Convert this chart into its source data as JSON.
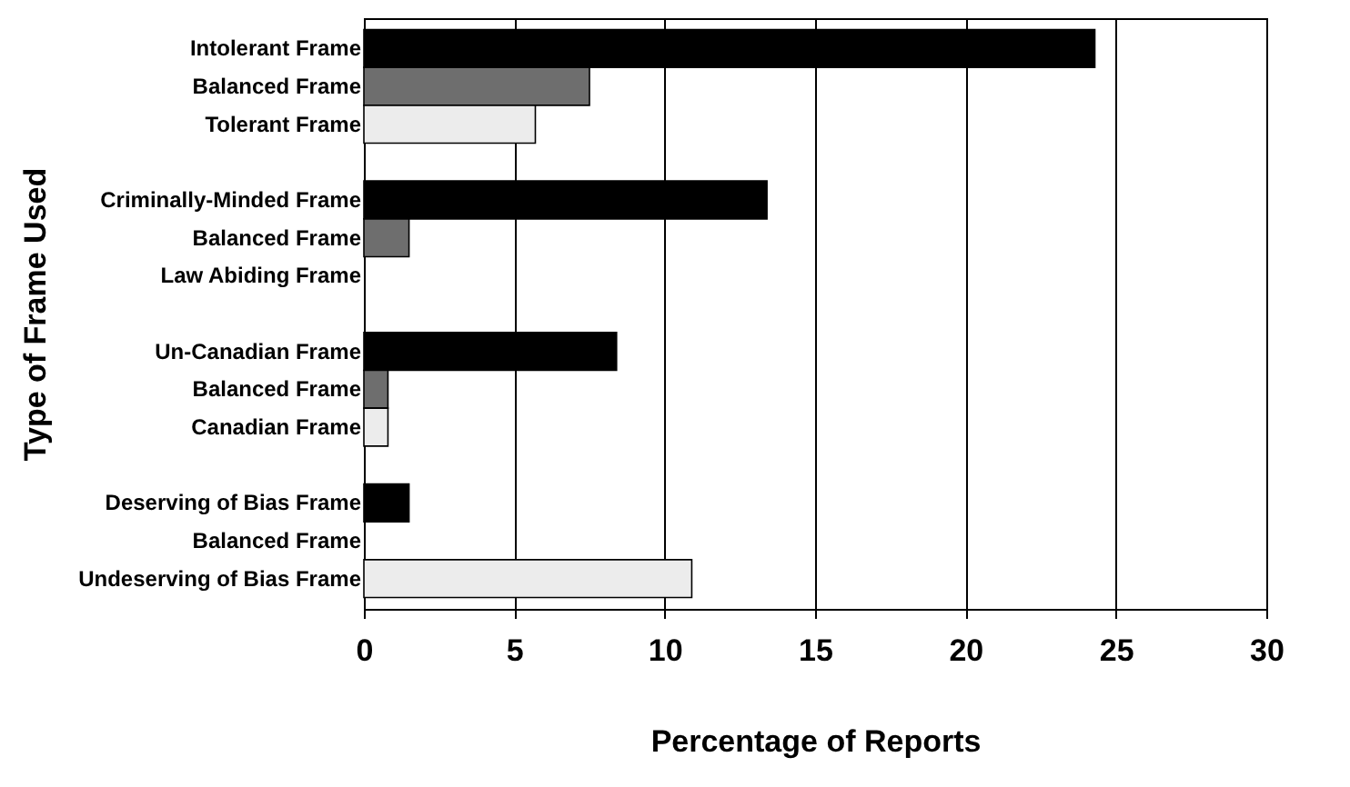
{
  "chart_data": {
    "type": "bar",
    "orientation": "horizontal",
    "xlabel": "Percentage of Reports",
    "ylabel": "Type of Frame Used",
    "categories": [
      "Intolerant Frame",
      "Balanced Frame",
      "Tolerant Frame",
      null,
      "Criminally-Minded Frame",
      "Balanced Frame",
      "Law Abiding Frame",
      null,
      "Un-Canadian Frame",
      "Balanced Frame",
      "Canadian Frame",
      null,
      "Deserving of Bias Frame",
      "Balanced Frame",
      "Undeserving of Bias Frame"
    ],
    "values": [
      24.3,
      7.5,
      5.7,
      null,
      13.4,
      1.5,
      0,
      null,
      8.4,
      0.8,
      0.8,
      null,
      1.5,
      0,
      10.9
    ],
    "colors": [
      "#000000",
      "#6e6e6e",
      "#ececec",
      "#ffffff",
      "#000000",
      "#6e6e6e",
      "#ececec",
      "#ffffff",
      "#000000",
      "#6e6e6e",
      "#ececec",
      "#ffffff",
      "#000000",
      "#6e6e6e",
      "#ececec"
    ],
    "xlim": [
      0,
      30
    ],
    "xticks": [
      0,
      5,
      10,
      15,
      20,
      25,
      30
    ],
    "grid": "x"
  }
}
